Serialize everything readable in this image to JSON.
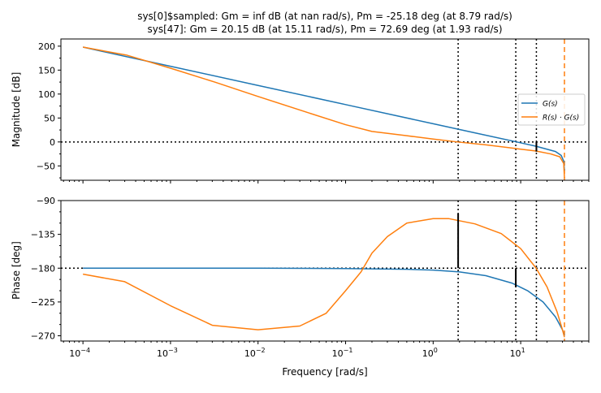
{
  "chart_data": {
    "type": "line",
    "title_lines": [
      "sys[0]$sampled: Gm = inf dB (at nan rad/s), Pm = -25.18 deg (at 8.79 rad/s)",
      "sys[47]: Gm = 20.15 dB (at 15.11 rad/s), Pm = 72.69 deg (at 1.93 rad/s)"
    ],
    "xlabel": "Frequency [rad/s]",
    "xscale": "log",
    "xlim": [
      5.6e-05,
      60
    ],
    "x_tick_values": [
      0.0001,
      0.001,
      0.01,
      0.1,
      1,
      10
    ],
    "x_tick_labels": [
      [
        "10",
        "−4"
      ],
      [
        "10",
        "−3"
      ],
      [
        "10",
        "−2"
      ],
      [
        "10",
        "−1"
      ],
      [
        "10",
        "0"
      ],
      [
        "10",
        "1"
      ]
    ],
    "grid": false,
    "legend": {
      "placement": "right",
      "entries": [
        {
          "label": "G(s)",
          "color": "#1f77b4"
        },
        {
          "label": "R(s) · G(s)",
          "color": "#ff7f0e"
        }
      ]
    },
    "magnitude": {
      "ylabel": "Magnitude [dB]",
      "ylim": [
        -80,
        215
      ],
      "yticks": [
        -50,
        0,
        50,
        100,
        150,
        200
      ],
      "reference_line_y": 0,
      "series": [
        {
          "name": "G(s)",
          "color": "#1f77b4",
          "points": [
            [
              0.0001,
              198
            ],
            [
              0.001,
              158
            ],
            [
              0.01,
              118
            ],
            [
              0.1,
              78
            ],
            [
              1,
              38
            ],
            [
              3,
              19
            ],
            [
              9,
              0
            ],
            [
              15,
              -9
            ],
            [
              25,
              -20
            ],
            [
              29,
              -28
            ],
            [
              31,
              -40
            ],
            [
              31.6,
              -60
            ]
          ]
        },
        {
          "name": "R(s) · G(s)",
          "color": "#ff7f0e",
          "points": [
            [
              0.0001,
              198
            ],
            [
              0.00032,
              181
            ],
            [
              0.001,
              154
            ],
            [
              0.0032,
              125
            ],
            [
              0.01,
              95
            ],
            [
              0.032,
              65
            ],
            [
              0.1,
              36
            ],
            [
              0.2,
              22
            ],
            [
              0.5,
              13
            ],
            [
              1,
              6
            ],
            [
              1.9,
              0
            ],
            [
              4,
              -6
            ],
            [
              9,
              -14
            ],
            [
              15,
              -19
            ],
            [
              22,
              -25
            ],
            [
              28,
              -31
            ],
            [
              31,
              -45
            ],
            [
              31.6,
              -75
            ]
          ]
        }
      ]
    },
    "phase": {
      "ylabel": "Phase [deg]",
      "ylim": [
        -277,
        -90
      ],
      "yticks": [
        -270,
        -225,
        -180,
        -135,
        -90
      ],
      "reference_line_y": -180,
      "series": [
        {
          "name": "G(s)",
          "color": "#1f77b4",
          "points": [
            [
              0.0001,
              -180
            ],
            [
              0.01,
              -180
            ],
            [
              0.1,
              -180.5
            ],
            [
              0.5,
              -181.5
            ],
            [
              1,
              -182.5
            ],
            [
              2,
              -185
            ],
            [
              4,
              -190
            ],
            [
              8,
              -200
            ],
            [
              12,
              -210
            ],
            [
              18,
              -225
            ],
            [
              25,
              -245
            ],
            [
              30,
              -262
            ],
            [
              31.6,
              -270
            ]
          ]
        },
        {
          "name": "R(s) · G(s)",
          "color": "#ff7f0e",
          "points": [
            [
              0.0001,
              -188
            ],
            [
              0.0003,
              -198
            ],
            [
              0.001,
              -230
            ],
            [
              0.003,
              -256
            ],
            [
              0.01,
              -262
            ],
            [
              0.03,
              -257
            ],
            [
              0.06,
              -240
            ],
            [
              0.1,
              -210
            ],
            [
              0.15,
              -185
            ],
            [
              0.2,
              -160
            ],
            [
              0.3,
              -138
            ],
            [
              0.5,
              -120
            ],
            [
              1,
              -114
            ],
            [
              1.5,
              -114
            ],
            [
              3,
              -121
            ],
            [
              6,
              -134
            ],
            [
              10,
              -154
            ],
            [
              15,
              -180
            ],
            [
              20,
              -205
            ],
            [
              26,
              -238
            ],
            [
              30,
              -262
            ],
            [
              31.6,
              -272
            ]
          ]
        }
      ]
    },
    "vertical_markers": [
      {
        "x": 1.93,
        "style": "dotted",
        "color": "#000000"
      },
      {
        "x": 8.79,
        "style": "dotted",
        "color": "#000000"
      },
      {
        "x": 15.11,
        "style": "dotted",
        "color": "#000000"
      },
      {
        "x": 31.6,
        "style": "dashed",
        "color": "#ff7f0e"
      }
    ],
    "margin_bars": [
      {
        "panel": "phase",
        "x": 1.93,
        "from": -180,
        "to": -107.31
      },
      {
        "panel": "phase",
        "x": 8.79,
        "from": -180,
        "to": -205.18
      },
      {
        "panel": "magnitude",
        "x": 15.11,
        "from": 0,
        "to": -20.15
      }
    ]
  }
}
